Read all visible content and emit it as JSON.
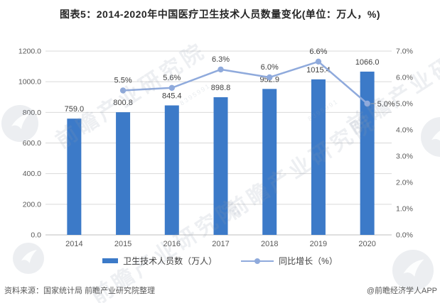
{
  "title": "图表5：2014-2020年中国医疗卫生技术人员数量变化(单位：万人，%)",
  "watermark": {
    "text": "前瞻产业研究院",
    "code": "8395991"
  },
  "legend": [
    {
      "label": "卫生技术人员数（万人）",
      "type": "bar"
    },
    {
      "label": "同比增长（%）",
      "type": "line"
    }
  ],
  "footer": {
    "source": "资料来源：国家统计局 前瞻产业研究院整理",
    "credit": "@前瞻经济学人APP"
  },
  "colors": {
    "bar": "#3C7AC8",
    "line": "#8FAADC",
    "grid": "#D9D9D9",
    "axis_line": "#BFBFBF",
    "axis_text": "#595959",
    "data_label": "#404040",
    "leader": "#A6A6A6"
  },
  "chart_data": {
    "type": "bar+line",
    "title": "图表5：2014-2020年中国医疗卫生技术人员数量变化(单位：万人，%)",
    "categories": [
      "2014",
      "2015",
      "2016",
      "2017",
      "2018",
      "2019",
      "2020"
    ],
    "series": [
      {
        "name": "卫生技术人员数（万人）",
        "type": "bar",
        "axis": "left",
        "values": [
          759.0,
          800.8,
          845.4,
          898.8,
          952.9,
          1015.4,
          1066.0
        ],
        "labels": [
          "759.0",
          "800.8",
          "845.4",
          "898.8",
          "952.9",
          "1015.4",
          "1066.0"
        ]
      },
      {
        "name": "同比增长（%）",
        "type": "line",
        "axis": "right",
        "values": [
          null,
          5.5,
          5.6,
          6.3,
          6.0,
          6.6,
          5.0
        ],
        "labels": [
          null,
          "5.5%",
          "5.6%",
          "6.3%",
          "6.0%",
          "6.6%",
          "5.0%"
        ]
      }
    ],
    "left_axis": {
      "min": 0,
      "max": 1200,
      "step": 200,
      "tick_labels": [
        "0.0",
        "200.0",
        "400.0",
        "600.0",
        "800.0",
        "1000.0",
        "1200.0"
      ]
    },
    "right_axis": {
      "min": 0,
      "max": 7,
      "step": 1,
      "tick_labels": [
        "0.0%",
        "1.0%",
        "2.0%",
        "3.0%",
        "4.0%",
        "5.0%",
        "6.0%",
        "7.0%"
      ]
    },
    "grid": true,
    "legend_position": "bottom"
  }
}
